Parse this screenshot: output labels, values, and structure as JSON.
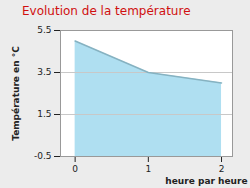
{
  "chart_data": {
    "type": "area",
    "title": "Evolution de la température",
    "x": [
      0,
      1,
      2
    ],
    "values": [
      5,
      3.5,
      3
    ],
    "color": "#a6dcef",
    "xlabel": "heure par heure",
    "ylabel": "Température en °C",
    "xlim": [
      -0.2,
      2.15
    ],
    "ylim": [
      -0.5,
      5.5
    ],
    "xticks": [
      0,
      1,
      2
    ],
    "yticks": [
      -0.5,
      1.5,
      3.5,
      5.5
    ],
    "grid": true
  }
}
